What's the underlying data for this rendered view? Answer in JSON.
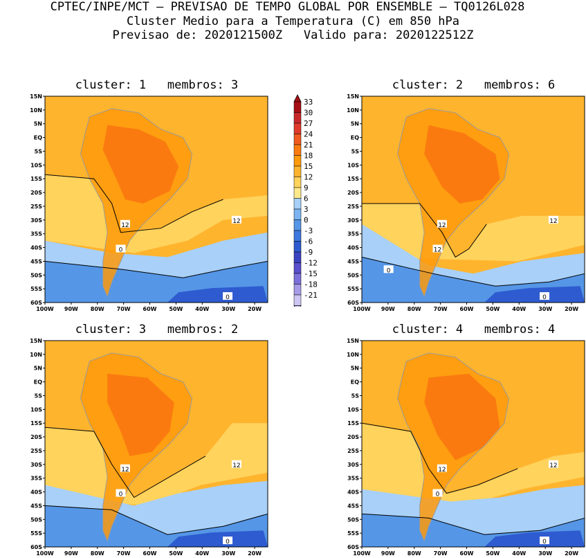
{
  "header": {
    "line1": "CPTEC/INPE/MCT – PREVISAO DE TEMPO GLOBAL POR ENSEMBLE – TQ0126L028",
    "line2": "Cluster Medio para a Temperatura (C) em 850 hPa",
    "line3": "Previsao de: 2020121500Z   Valido para: 2020122512Z"
  },
  "axes": {
    "lat_labels": [
      "15N",
      "10N",
      "5N",
      "EQ",
      "5S",
      "10S",
      "15S",
      "20S",
      "25S",
      "30S",
      "35S",
      "40S",
      "45S",
      "50S",
      "55S",
      "60S"
    ],
    "lon_labels": [
      "100W",
      "90W",
      "80W",
      "70W",
      "60W",
      "50W",
      "40W",
      "30W",
      "20W"
    ]
  },
  "colorbar": {
    "labels": [
      "33",
      "30",
      "27",
      "24",
      "21",
      "18",
      "15",
      "12",
      "9",
      "6",
      "3",
      "0",
      "-3",
      "-6",
      "-9",
      "-12",
      "-15",
      "-18",
      "-21"
    ],
    "colors": [
      "#a50f15",
      "#c8282a",
      "#e03a2a",
      "#f05a1e",
      "#fa7a10",
      "#fe9a0a",
      "#ffb42e",
      "#ffd35c",
      "#fde98a",
      "#a8d0f8",
      "#7bb4f0",
      "#5596e6",
      "#3d78de",
      "#2e5bd0",
      "#3b44c0",
      "#5a4fcc",
      "#7c70da",
      "#a59be6",
      "#cdc5f2"
    ]
  },
  "panels": [
    {
      "title": "cluster: 1   membros: 3",
      "contour_labels": [
        "12",
        "12",
        "0",
        "0"
      ]
    },
    {
      "title": "cluster: 2   membros: 6",
      "contour_labels": [
        "12",
        "12",
        "12",
        "0",
        "0"
      ]
    },
    {
      "title": "cluster: 3   membros: 2",
      "contour_labels": [
        "12",
        "12",
        "0",
        "0"
      ]
    },
    {
      "title": "cluster: 4   membros: 4",
      "contour_labels": [
        "12",
        "12",
        "0",
        "0"
      ]
    }
  ]
}
